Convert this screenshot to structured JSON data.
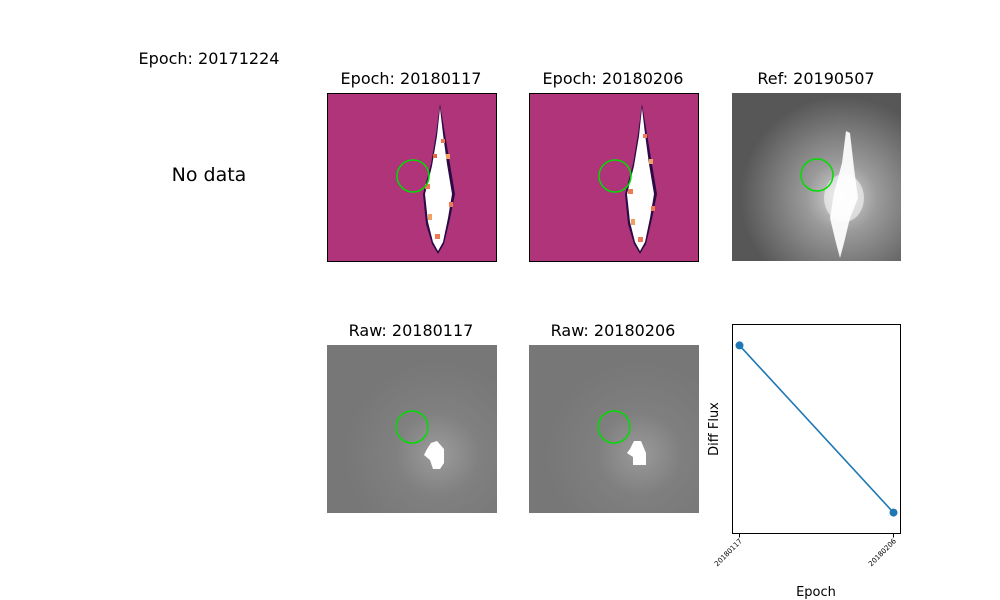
{
  "empty_panel": {
    "title": "Epoch: 20171224",
    "message": "No data"
  },
  "diff_panels": [
    {
      "title": "Epoch: 20180117"
    },
    {
      "title": "Epoch: 20180206"
    }
  ],
  "ref_panel": {
    "title": "Ref: 20190507"
  },
  "raw_panels": [
    {
      "title": "Raw: 20180117"
    },
    {
      "title": "Raw: 20180206"
    }
  ],
  "colors": {
    "diff_background": "#b2357a",
    "aperture_circle": "#00dd00",
    "series_line": "#1f77b4"
  },
  "chart_data": {
    "type": "line",
    "x": [
      "20180117",
      "20180206"
    ],
    "series": [
      {
        "values": [
          0.9,
          0.1
        ]
      }
    ],
    "xlabel": "Epoch",
    "ylabel": "Diff Flux",
    "ylim": [
      0,
      1
    ],
    "yticks_visible": false,
    "grid": false
  }
}
